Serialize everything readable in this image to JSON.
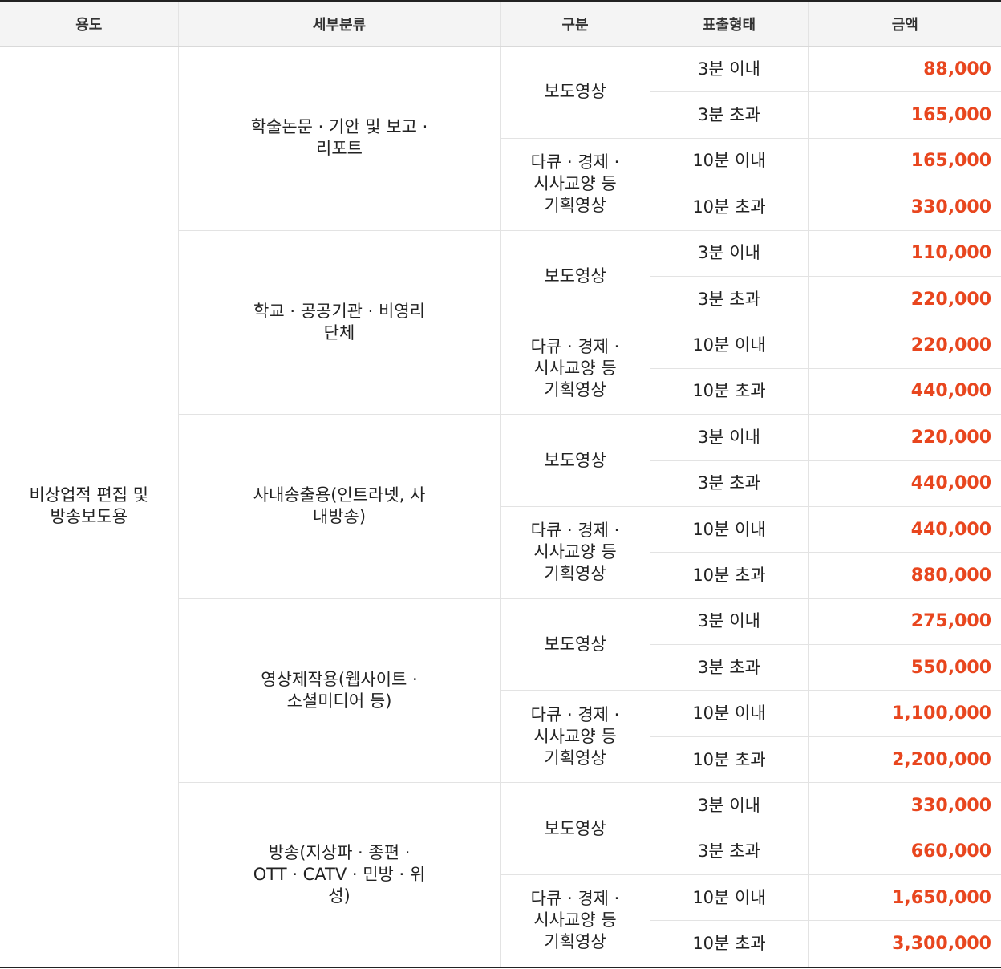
{
  "headers": [
    "용도",
    "세부분류",
    "구분",
    "표출형태",
    "금액"
  ],
  "usage": "비상업적 편집 및 방송보도용",
  "colors": {
    "accent": "#e8461e",
    "header_bg": "#f4f4f4",
    "text": "#222222"
  },
  "groups": [
    {
      "category": "학술논문 · 기안 및 보고 · 리포트",
      "types": [
        {
          "type": "보도영상",
          "rows": [
            {
              "format": "3분 이내",
              "price": "88,000"
            },
            {
              "format": "3분 초과",
              "price": "165,000"
            }
          ]
        },
        {
          "type": "다큐 · 경제 · 시사교양 등 기획영상",
          "rows": [
            {
              "format": "10분 이내",
              "price": "165,000"
            },
            {
              "format": "10분 초과",
              "price": "330,000"
            }
          ]
        }
      ]
    },
    {
      "category": "학교 · 공공기관 · 비영리단체",
      "types": [
        {
          "type": "보도영상",
          "rows": [
            {
              "format": "3분 이내",
              "price": "110,000"
            },
            {
              "format": "3분 초과",
              "price": "220,000"
            }
          ]
        },
        {
          "type": "다큐 · 경제 · 시사교양 등 기획영상",
          "rows": [
            {
              "format": "10분 이내",
              "price": "220,000"
            },
            {
              "format": "10분 초과",
              "price": "440,000"
            }
          ]
        }
      ]
    },
    {
      "category": "사내송출용(인트라넷, 사내방송)",
      "types": [
        {
          "type": "보도영상",
          "rows": [
            {
              "format": "3분 이내",
              "price": "220,000"
            },
            {
              "format": "3분 초과",
              "price": "440,000"
            }
          ]
        },
        {
          "type": "다큐 · 경제 · 시사교양 등 기획영상",
          "rows": [
            {
              "format": "10분 이내",
              "price": "440,000"
            },
            {
              "format": "10분 초과",
              "price": "880,000"
            }
          ]
        }
      ]
    },
    {
      "category": "영상제작용(웹사이트 · 소셜미디어 등)",
      "types": [
        {
          "type": "보도영상",
          "rows": [
            {
              "format": "3분 이내",
              "price": "275,000"
            },
            {
              "format": "3분 초과",
              "price": "550,000"
            }
          ]
        },
        {
          "type": "다큐 · 경제 · 시사교양 등 기획영상",
          "rows": [
            {
              "format": "10분 이내",
              "price": "1,100,000"
            },
            {
              "format": "10분 초과",
              "price": "2,200,000"
            }
          ]
        }
      ]
    },
    {
      "category": "방송(지상파 · 종편 · OTT · CATV · 민방 · 위성)",
      "types": [
        {
          "type": "보도영상",
          "rows": [
            {
              "format": "3분 이내",
              "price": "330,000"
            },
            {
              "format": "3분 초과",
              "price": "660,000"
            }
          ]
        },
        {
          "type": "다큐 · 경제 · 시사교양 등 기획영상",
          "rows": [
            {
              "format": "10분 이내",
              "price": "1,650,000"
            },
            {
              "format": "10분 초과",
              "price": "3,300,000"
            }
          ]
        }
      ]
    }
  ]
}
